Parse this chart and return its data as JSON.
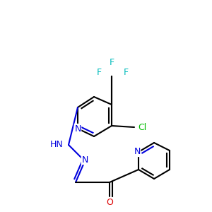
{
  "figsize": [
    3.0,
    3.0
  ],
  "dpi": 100,
  "bg_color": "#ffffff",
  "colors": {
    "C": "#000000",
    "N": "#0000dd",
    "O": "#dd0000",
    "Cl": "#00bb00",
    "F": "#00bbbb",
    "bond": "#000000"
  },
  "font_size": 9,
  "bond_width": 1.5
}
